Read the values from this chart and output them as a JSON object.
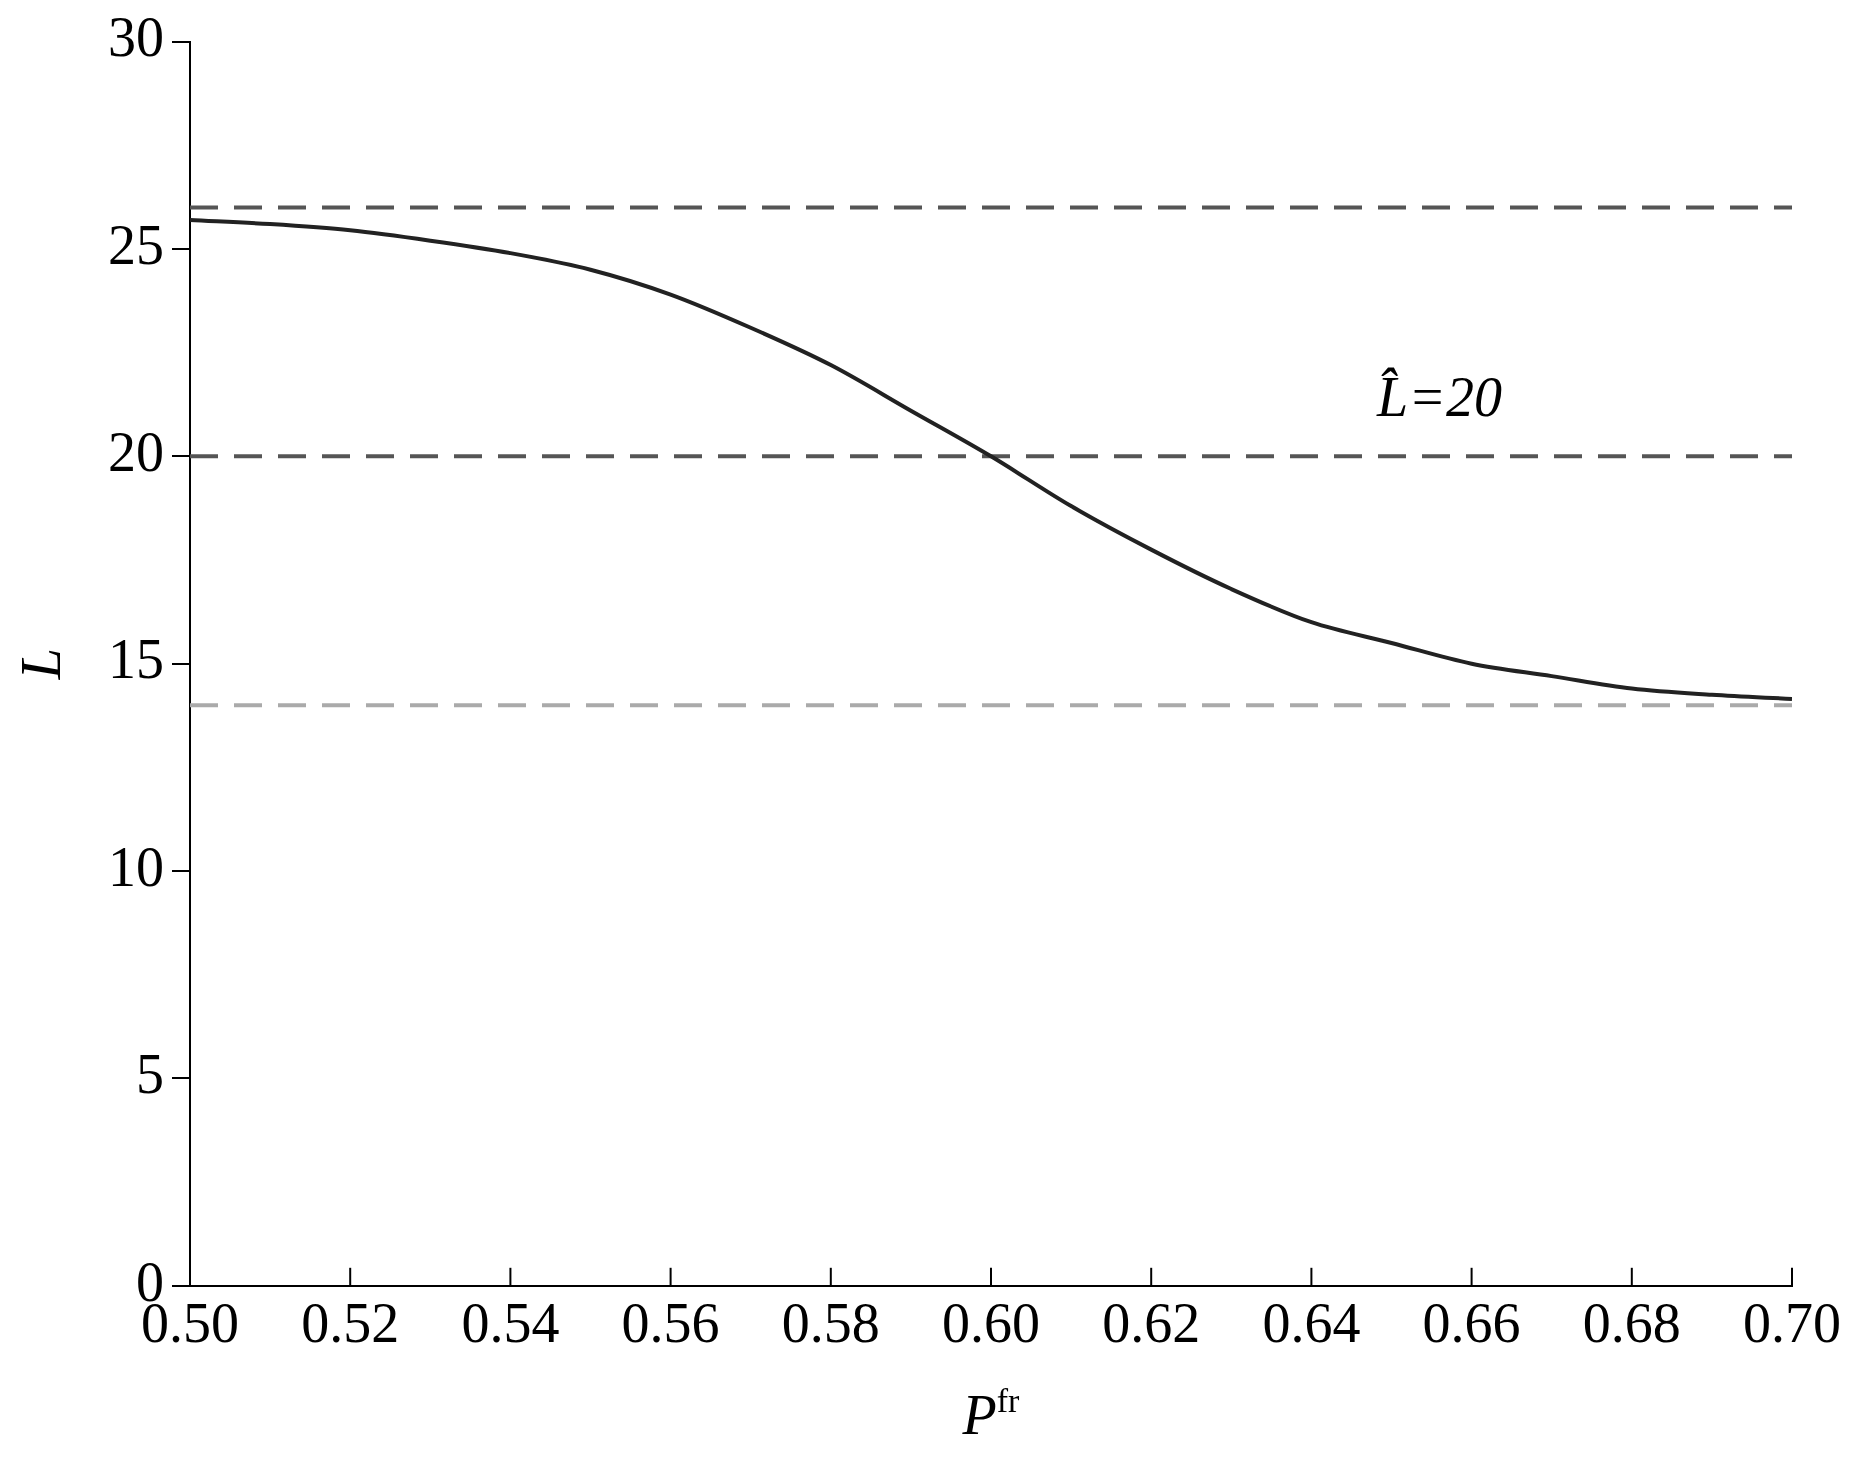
{
  "chart_data": {
    "type": "line",
    "xlabel": "P$^{fr}$",
    "ylabel": "L",
    "x": [
      0.5,
      0.51,
      0.52,
      0.53,
      0.54,
      0.55,
      0.56,
      0.57,
      0.58,
      0.59,
      0.6,
      0.61,
      0.62,
      0.63,
      0.64,
      0.65,
      0.66,
      0.67,
      0.68,
      0.69,
      0.7
    ],
    "series": [
      {
        "color": "#222222",
        "values": [
          25.7,
          25.6,
          25.45,
          25.2,
          24.9,
          24.5,
          23.9,
          23.1,
          22.2,
          21.1,
          20.0,
          18.8,
          17.75,
          16.8,
          16.0,
          15.5,
          15.0,
          14.7,
          14.4,
          14.25,
          14.15
        ]
      }
    ],
    "xlim": [
      0.5,
      0.7
    ],
    "xticks": [
      {
        "value": 0.5,
        "label": "0.50"
      },
      {
        "value": 0.52,
        "label": "0.52"
      },
      {
        "value": 0.54,
        "label": "0.54"
      },
      {
        "value": 0.56,
        "label": "0.56"
      },
      {
        "value": 0.58,
        "label": "0.58"
      },
      {
        "value": 0.6,
        "label": "0.60"
      },
      {
        "value": 0.62,
        "label": "0.62"
      },
      {
        "value": 0.64,
        "label": "0.64"
      },
      {
        "value": 0.66,
        "label": "0.66"
      },
      {
        "value": 0.68,
        "label": "0.68"
      },
      {
        "value": 0.7,
        "label": "0.70"
      }
    ],
    "ylim": [
      0,
      30
    ],
    "yticks": [
      0,
      5,
      10,
      15,
      20,
      25,
      30
    ],
    "ref_lines": [
      {
        "axis": "y",
        "value": 26,
        "color": "#555555",
        "line_style": "dashed"
      },
      {
        "axis": "y",
        "value": 20,
        "color": "#555555",
        "line_style": "dashed",
        "label": "L̂=20"
      },
      {
        "axis": "y",
        "value": 14,
        "color": "#aaaaaa",
        "line_style": "dashed"
      }
    ],
    "grid": false,
    "legend": false,
    "marker": "none",
    "line_style": "solid"
  }
}
